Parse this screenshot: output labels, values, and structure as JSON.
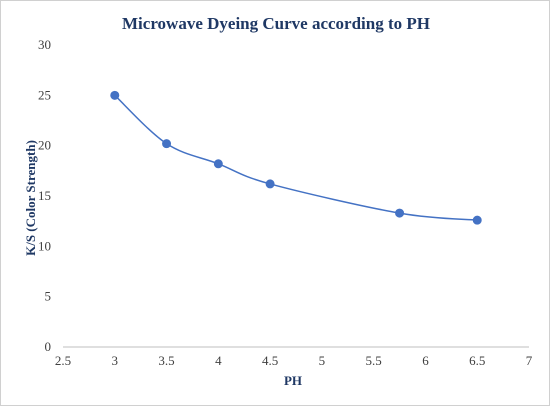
{
  "chart_data": {
    "type": "scatter",
    "title": "Microwave Dyeing Curve according to PH",
    "xlabel": "PH",
    "ylabel": "K/S (Color Strength)",
    "xlim": [
      2.5,
      7
    ],
    "ylim": [
      0,
      30
    ],
    "x_ticks": [
      "2.5",
      "3",
      "3.5",
      "4",
      "4.5",
      "5",
      "5.5",
      "6",
      "6.5",
      "7"
    ],
    "y_ticks": [
      "0",
      "5",
      "10",
      "15",
      "20",
      "25",
      "30"
    ],
    "grid": false,
    "smooth_line": true,
    "series": [
      {
        "color": "#4472c4",
        "x": [
          3,
          3.5,
          4,
          4.5,
          5.75,
          6.5
        ],
        "y": [
          25.0,
          20.2,
          18.2,
          16.2,
          13.3,
          12.6
        ]
      }
    ]
  }
}
